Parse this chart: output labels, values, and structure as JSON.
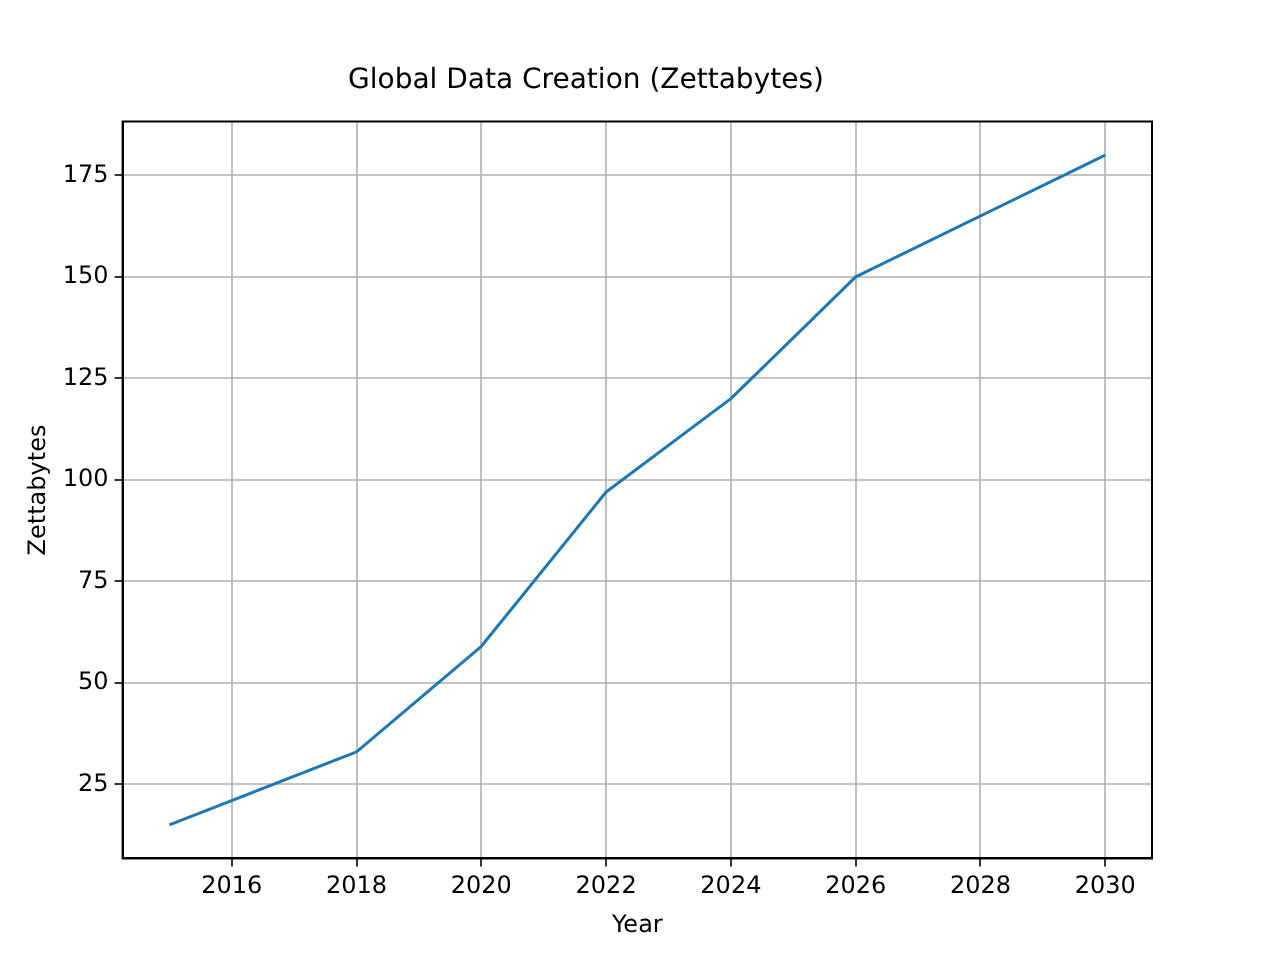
{
  "chart_data": {
    "type": "line",
    "title": "Global Data Creation (Zettabytes)",
    "xlabel": "Year",
    "ylabel": "Zettabytes",
    "x": [
      2015,
      2018,
      2020,
      2022,
      2024,
      2026,
      2030
    ],
    "series": [
      {
        "color": "#1f77b4",
        "values": [
          15,
          33,
          59,
          97,
          120,
          150,
          180
        ]
      }
    ],
    "xlim": [
      2014.25,
      2030.75
    ],
    "xticks": [
      2016,
      2018,
      2020,
      2022,
      2024,
      2026,
      2028,
      2030
    ],
    "ylim": [
      6.75,
      188.25
    ],
    "yticks": [
      25,
      50,
      75,
      100,
      125,
      150,
      175
    ],
    "grid": true,
    "legend": false,
    "marker": "none",
    "line_style": "solid"
  }
}
